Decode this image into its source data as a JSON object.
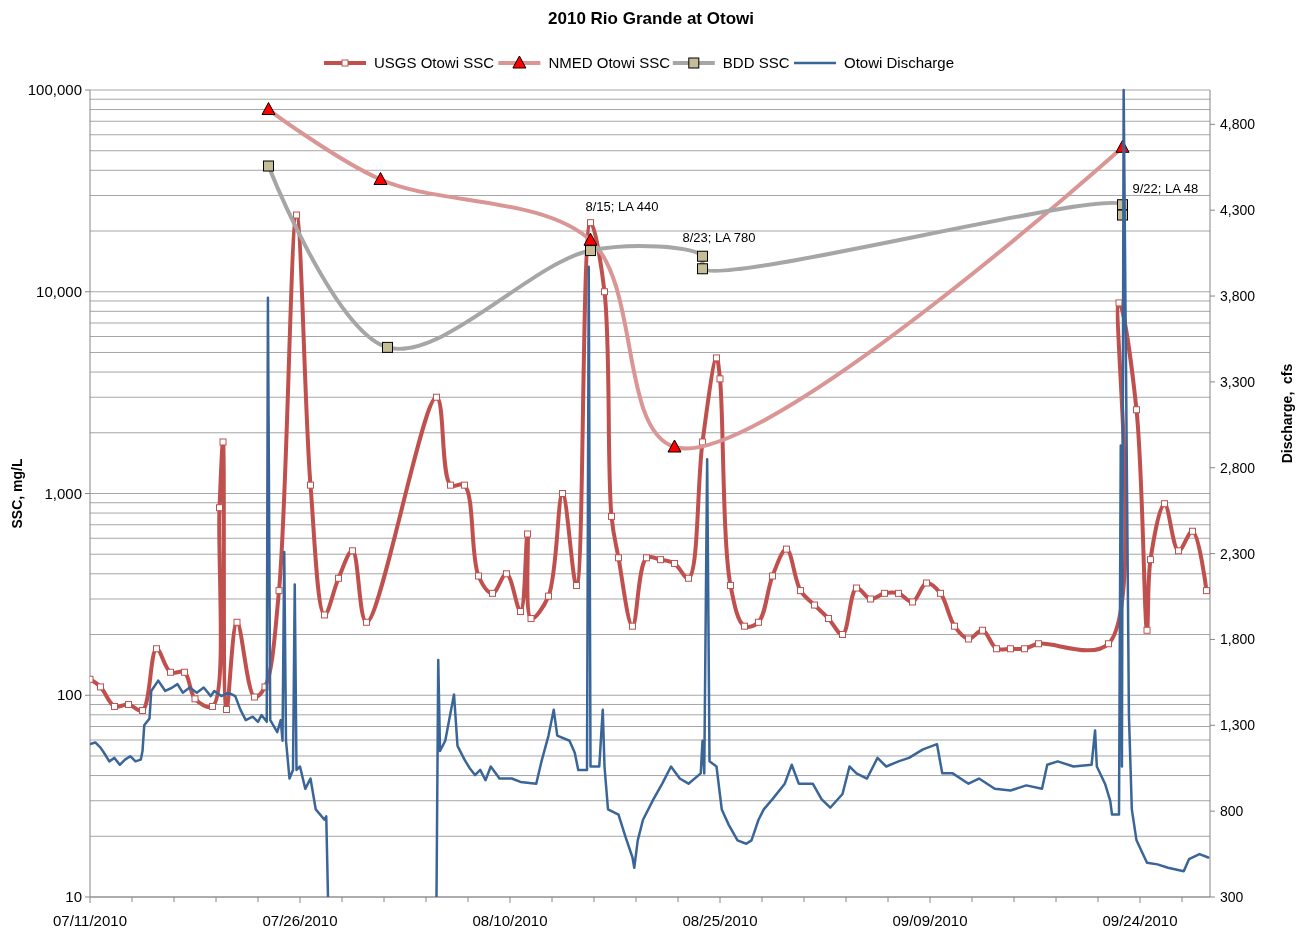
{
  "chart_data": {
    "type": "line",
    "title": "2010 Rio Grande at Otowi",
    "ylabel": "SSC, mg/L",
    "y2label": "Discharge,  cfs",
    "log": true,
    "legend": "top",
    "grid": "y",
    "xlim": [
      "2010-07-11",
      "2010-09-29"
    ],
    "xticks": [
      {
        "value": "2010-07-11",
        "label": "07/11/2010"
      },
      {
        "value": "2010-07-14",
        "label": null
      },
      {
        "value": "2010-07-17",
        "label": null
      },
      {
        "value": "2010-07-20",
        "label": null
      },
      {
        "value": "2010-07-23",
        "label": null
      },
      {
        "value": "2010-07-26",
        "label": "07/26/2010"
      },
      {
        "value": "2010-07-29",
        "label": null
      },
      {
        "value": "2010-08-01",
        "label": null
      },
      {
        "value": "2010-08-04",
        "label": null
      },
      {
        "value": "2010-08-07",
        "label": null
      },
      {
        "value": "2010-08-10",
        "label": "08/10/2010"
      },
      {
        "value": "2010-08-13",
        "label": null
      },
      {
        "value": "2010-08-16",
        "label": null
      },
      {
        "value": "2010-08-19",
        "label": null
      },
      {
        "value": "2010-08-22",
        "label": null
      },
      {
        "value": "2010-08-25",
        "label": "08/25/2010"
      },
      {
        "value": "2010-08-28",
        "label": null
      },
      {
        "value": "2010-08-31",
        "label": null
      },
      {
        "value": "2010-09-03",
        "label": null
      },
      {
        "value": "2010-09-06",
        "label": null
      },
      {
        "value": "2010-09-09",
        "label": "09/09/2010"
      },
      {
        "value": "2010-09-12",
        "label": null
      },
      {
        "value": "2010-09-15",
        "label": null
      },
      {
        "value": "2010-09-18",
        "label": null
      },
      {
        "value": "2010-09-21",
        "label": null
      },
      {
        "value": "2010-09-24",
        "label": "09/24/2010"
      },
      {
        "value": "2010-09-27",
        "label": null
      }
    ],
    "ylim": [
      10,
      100000
    ],
    "yticks": [
      10,
      {
        "value": 20,
        "label": null
      },
      {
        "value": 30,
        "label": null
      },
      {
        "value": 40,
        "label": null
      },
      {
        "value": 50,
        "label": null
      },
      {
        "value": 60,
        "label": null
      },
      {
        "value": 70,
        "label": null
      },
      {
        "value": 80,
        "label": null
      },
      {
        "value": 90,
        "label": null
      },
      100,
      {
        "value": 200,
        "label": null
      },
      {
        "value": 300,
        "label": null
      },
      {
        "value": 400,
        "label": null
      },
      {
        "value": 500,
        "label": null
      },
      {
        "value": 600,
        "label": null
      },
      {
        "value": 700,
        "label": null
      },
      {
        "value": 800,
        "label": null
      },
      {
        "value": 900,
        "label": null
      },
      {
        "value": 1000,
        "label": "1,000"
      },
      {
        "value": 2000,
        "label": null
      },
      {
        "value": 3000,
        "label": null
      },
      {
        "value": 4000,
        "label": null
      },
      {
        "value": 5000,
        "label": null
      },
      {
        "value": 6000,
        "label": null
      },
      {
        "value": 7000,
        "label": null
      },
      {
        "value": 8000,
        "label": null
      },
      {
        "value": 9000,
        "label": null
      },
      {
        "value": 10000,
        "label": "10,000"
      },
      {
        "value": 20000,
        "label": null
      },
      {
        "value": 30000,
        "label": null
      },
      {
        "value": 40000,
        "label": null
      },
      {
        "value": 50000,
        "label": null
      },
      {
        "value": 60000,
        "label": null
      },
      {
        "value": 70000,
        "label": null
      },
      {
        "value": 80000,
        "label": null
      },
      {
        "value": 90000,
        "label": null
      },
      {
        "value": 100000,
        "label": "100,000"
      }
    ],
    "y2lim": [
      300,
      5000
    ],
    "y2ticks": [
      300,
      800,
      {
        "value": 1300,
        "label": "1,300"
      },
      {
        "value": 1800,
        "label": "1,800"
      },
      {
        "value": 2300,
        "label": "2,300"
      },
      {
        "value": 2800,
        "label": "2,800"
      },
      {
        "value": 3300,
        "label": "3,300"
      },
      {
        "value": 3800,
        "label": "3,800"
      },
      {
        "value": 4300,
        "label": "4,300"
      },
      {
        "value": 4800,
        "label": "4,800"
      }
    ],
    "annotations": [
      {
        "text": "8/15; LA 440",
        "x": "2010-08-15T18:00",
        "y": 16000
      },
      {
        "text": "8/23; LA 780",
        "x": "2010-08-23T18:00",
        "y": 15000
      },
      {
        "text": "9/22; LA 48",
        "x": "2010-09-22T18:00",
        "y": 27000
      }
    ],
    "series": [
      {
        "name": "USGS Otowi SSC",
        "color": "#c0504d",
        "marker": "square",
        "x": [
          "2010-07-11T00:00",
          "2010-07-11T18:00",
          "2010-07-12T18:00",
          "2010-07-13T18:00",
          "2010-07-14T18:00",
          "2010-07-15T18:00",
          "2010-07-16T18:00",
          "2010-07-17T18:00",
          "2010-07-18T12:00",
          "2010-07-19T18:00",
          "2010-07-20T06:00",
          "2010-07-20T12:00",
          "2010-07-20T18:00",
          "2010-07-21T12:00",
          "2010-07-22T18:00",
          "2010-07-23T12:00",
          "2010-07-24T12:00",
          "2010-07-25T18:00",
          "2010-07-26T18:00",
          "2010-07-27T18:00",
          "2010-07-28T18:00",
          "2010-07-29T18:00",
          "2010-07-30T18:00",
          "2010-08-04T18:00",
          "2010-08-05T18:00",
          "2010-08-06T18:00",
          "2010-08-07T18:00",
          "2010-08-08T18:00",
          "2010-08-09T18:00",
          "2010-08-10T18:00",
          "2010-08-11T06:00",
          "2010-08-11T12:00",
          "2010-08-12T18:00",
          "2010-08-13T18:00",
          "2010-08-14T18:00",
          "2010-08-15T18:00",
          "2010-08-16T18:00",
          "2010-08-17T06:00",
          "2010-08-17T18:00",
          "2010-08-18T18:00",
          "2010-08-19T18:00",
          "2010-08-20T18:00",
          "2010-08-21T18:00",
          "2010-08-22T18:00",
          "2010-08-23T18:00",
          "2010-08-24T18:00",
          "2010-08-25T00:00",
          "2010-08-25T18:00",
          "2010-08-26T18:00",
          "2010-08-27T18:00",
          "2010-08-28T18:00",
          "2010-08-29T18:00",
          "2010-08-30T18:00",
          "2010-08-31T18:00",
          "2010-09-01T18:00",
          "2010-09-02T18:00",
          "2010-09-03T18:00",
          "2010-09-04T18:00",
          "2010-09-05T18:00",
          "2010-09-06T18:00",
          "2010-09-07T18:00",
          "2010-09-08T18:00",
          "2010-09-09T18:00",
          "2010-09-10T18:00",
          "2010-09-11T18:00",
          "2010-09-12T18:00",
          "2010-09-13T18:00",
          "2010-09-14T18:00",
          "2010-09-15T18:00",
          "2010-09-16T18:00",
          "2010-09-21T18:00",
          "2010-09-22T12:00",
          "2010-09-23T18:00",
          "2010-09-24T12:00",
          "2010-09-24T18:00",
          "2010-09-25T18:00",
          "2010-09-26T18:00",
          "2010-09-27T18:00",
          "2010-09-28T18:00"
        ],
        "values": [
          120,
          110,
          88,
          90,
          84,
          170,
          130,
          130,
          96,
          88,
          850,
          1800,
          85,
          230,
          98,
          110,
          330,
          24000,
          1100,
          250,
          380,
          520,
          230,
          3000,
          1100,
          1100,
          390,
          320,
          400,
          260,
          630,
          240,
          310,
          1000,
          350,
          22000,
          10000,
          770,
          480,
          220,
          480,
          470,
          450,
          380,
          1800,
          4700,
          3700,
          350,
          220,
          230,
          390,
          530,
          330,
          280,
          240,
          200,
          340,
          300,
          320,
          320,
          290,
          360,
          320,
          220,
          190,
          210,
          170,
          170,
          170,
          180,
          180,
          8800,
          2600,
          210,
          470,
          890,
          520,
          650,
          330
        ]
      },
      {
        "name": "NMED Otowi SSC",
        "color": "#d99694",
        "marker": "triangle",
        "x": [
          "2010-07-23T18:00",
          "2010-07-31T18:00",
          "2010-08-15T18:00",
          "2010-08-21T18:00",
          "2010-09-22T18:00"
        ],
        "values": [
          80000,
          36000,
          18000,
          1700,
          52000
        ]
      },
      {
        "name": "BDD SSC",
        "color": "#a6a6a6",
        "marker": "square",
        "x": [
          "2010-07-23T18:00",
          "2010-08-01T06:00",
          "2010-08-15T18:00",
          "2010-08-23T18:00",
          "2010-08-23T18:00",
          "2010-09-22T18:00",
          "2010-09-22T18:00"
        ],
        "values": [
          42000,
          5300,
          16000,
          15000,
          13000,
          27000,
          24000
        ]
      },
      {
        "name": "Otowi Discharge",
        "color": "#3a6599",
        "axis": "y2",
        "marker": "none",
        "x": [
          "2010-07-11T00:00",
          "2010-07-11T09:00",
          "2010-07-11T18:00",
          "2010-07-12T00:00",
          "2010-07-12T09:00",
          "2010-07-12T18:00",
          "2010-07-13T03:00",
          "2010-07-13T12:00",
          "2010-07-13T21:00",
          "2010-07-14T06:00",
          "2010-07-14T15:00",
          "2010-07-14T18:00",
          "2010-07-14T21:00",
          "2010-07-15T06:00",
          "2010-07-15T09:00",
          "2010-07-15T21:00",
          "2010-07-16T09:00",
          "2010-07-16T21:00",
          "2010-07-17T06:00",
          "2010-07-17T15:00",
          "2010-07-18T03:00",
          "2010-07-18T15:00",
          "2010-07-19T03:00",
          "2010-07-19T15:00",
          "2010-07-19T21:00",
          "2010-07-20T09:00",
          "2010-07-20T21:00",
          "2010-07-21T09:00",
          "2010-07-21T18:00",
          "2010-07-22T03:00",
          "2010-07-22T15:00",
          "2010-07-23T00:00",
          "2010-07-23T06:00",
          "2010-07-23T15:00",
          "2010-07-23T17:00",
          "2010-07-23T21:00",
          "2010-07-24T09:00",
          "2010-07-24T15:00",
          "2010-07-24T18:00",
          "2010-07-24T21:00",
          "2010-07-25T00:00",
          "2010-07-25T06:00",
          "2010-07-25T12:00",
          "2010-07-25T15:00",
          "2010-07-25T18:00",
          "2010-07-26T00:00",
          "2010-07-26T09:00",
          "2010-07-26T18:00",
          "2010-07-27T03:00",
          "2010-07-27T18:00",
          "2010-07-27T21:00",
          "2010-07-28T00:00",
          "2010-07-31T00:00",
          "2010-08-04T18:00",
          "2010-08-04T21:00",
          "2010-08-05T00:00",
          "2010-08-05T09:00",
          "2010-08-06T00:00",
          "2010-08-06T06:00",
          "2010-08-06T18:00",
          "2010-08-07T03:00",
          "2010-08-07T12:00",
          "2010-08-07T21:00",
          "2010-08-08T06:00",
          "2010-08-08T15:00",
          "2010-08-09T06:00",
          "2010-08-10T03:00",
          "2010-08-10T18:00",
          "2010-08-11T21:00",
          "2010-08-12T06:00",
          "2010-08-12T18:00",
          "2010-08-13T03:00",
          "2010-08-13T09:00",
          "2010-08-14T06:00",
          "2010-08-14T15:00",
          "2010-08-14T21:00",
          "2010-08-15T12:00",
          "2010-08-15T15:00",
          "2010-08-15T18:00",
          "2010-08-16T09:00",
          "2010-08-16T15:00",
          "2010-08-16T18:00",
          "2010-08-17T00:00",
          "2010-08-17T18:00",
          "2010-08-18T06:00",
          "2010-08-18T18:00",
          "2010-08-18T21:00",
          "2010-08-19T03:00",
          "2010-08-19T12:00",
          "2010-08-20T06:00",
          "2010-08-20T21:00",
          "2010-08-21T12:00",
          "2010-08-22T03:00",
          "2010-08-22T18:00",
          "2010-08-23T15:00",
          "2010-08-23T18:00",
          "2010-08-23T21:00",
          "2010-08-24T02:00",
          "2010-08-24T06:00",
          "2010-08-24T18:00",
          "2010-08-25T03:00",
          "2010-08-25T15:00",
          "2010-08-26T06:00",
          "2010-08-26T21:00",
          "2010-08-27T06:00",
          "2010-08-27T18:00",
          "2010-08-28T03:00",
          "2010-08-28T18:00",
          "2010-08-29T15:00",
          "2010-08-30T03:00",
          "2010-08-30T15:00",
          "2010-08-31T15:00",
          "2010-09-01T06:00",
          "2010-09-01T21:00",
          "2010-09-02T18:00",
          "2010-09-03T06:00",
          "2010-09-03T18:00",
          "2010-09-04T12:00",
          "2010-09-05T06:00",
          "2010-09-05T21:00",
          "2010-09-06T18:00",
          "2010-09-07T12:00",
          "2010-09-08T12:00",
          "2010-09-09T12:00",
          "2010-09-09T21:00",
          "2010-09-10T15:00",
          "2010-09-11T18:00",
          "2010-09-12T12:00",
          "2010-09-13T15:00",
          "2010-09-14T18:00",
          "2010-09-15T21:00",
          "2010-09-17T00:00",
          "2010-09-17T09:00",
          "2010-09-18T03:00",
          "2010-09-19T06:00",
          "2010-09-20T13:00",
          "2010-09-20T19:00",
          "2010-09-20T22:00",
          "2010-09-21T12:00",
          "2010-09-21T21:00",
          "2010-09-22T00:00",
          "2010-09-22T12:00",
          "2010-09-22T15:00",
          "2010-09-22T17:00",
          "2010-09-22T20:00",
          "2010-09-23T05:00",
          "2010-09-23T10:00",
          "2010-09-23T18:00",
          "2010-09-24T12:00",
          "2010-09-25T06:00",
          "2010-09-26T00:00",
          "2010-09-27T03:00",
          "2010-09-27T12:00",
          "2010-09-28T06:00",
          "2010-09-28T21:00"
        ],
        "values": [
          1190,
          1200,
          1170,
          1140,
          1090,
          1110,
          1070,
          1100,
          1120,
          1090,
          1100,
          1150,
          1300,
          1340,
          1500,
          1560,
          1500,
          1520,
          1540,
          1490,
          1520,
          1490,
          1520,
          1470,
          1500,
          1470,
          1490,
          1470,
          1390,
          1330,
          1350,
          1320,
          1360,
          1320,
          3790,
          1330,
          1260,
          1330,
          1210,
          2310,
          1210,
          990,
          1040,
          2120,
          1040,
          1060,
          930,
          990,
          810,
          750,
          770,
          300,
          null,
          300,
          1680,
          1150,
          1210,
          1480,
          1180,
          1100,
          1050,
          1010,
          1040,
          980,
          1060,
          990,
          990,
          970,
          960,
          1090,
          1240,
          1390,
          1240,
          1210,
          1140,
          1040,
          1040,
          3970,
          1060,
          1060,
          1390,
          1060,
          810,
          780,
          650,
          530,
          470,
          630,
          750,
          870,
          960,
          1060,
          990,
          960,
          1020,
          1210,
          1020,
          2850,
          1090,
          1060,
          810,
          720,
          630,
          610,
          630,
          750,
          810,
          870,
          960,
          1070,
          960,
          960,
          870,
          820,
          900,
          1060,
          1020,
          990,
          1110,
          1060,
          1090,
          1110,
          1160,
          1190,
          1020,
          1020,
          960,
          990,
          930,
          920,
          950,
          930,
          1070,
          1090,
          1060,
          1070,
          1270,
          1060,
          960,
          860,
          780,
          780,
          2930,
          1060,
          5000,
          1360,
          810,
          630,
          500,
          490,
          470,
          450,
          520,
          550,
          530
        ]
      }
    ]
  }
}
